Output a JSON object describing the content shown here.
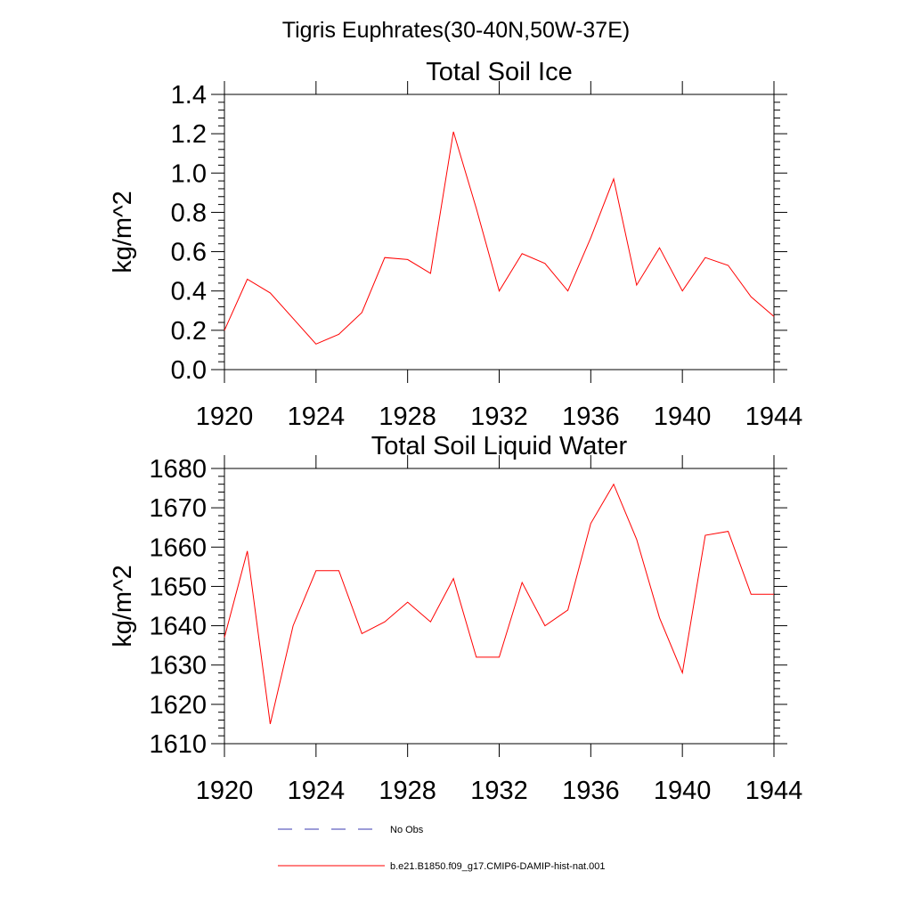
{
  "figure": {
    "title": "Tigris Euphrates(30-40N,50W-37E)"
  },
  "colors": {
    "series_model": "#ff0000",
    "series_obs": "#3a3ab0",
    "axis": "#000000"
  },
  "legend": {
    "placement": "bottom-center",
    "items": [
      {
        "label": "No Obs",
        "style": "dashed",
        "color": "#3a3ab0"
      },
      {
        "label": "b.e21.B1850.f09_g17.CMIP6-DAMIP-hist-nat.001",
        "style": "solid",
        "color": "#ff0000"
      }
    ]
  },
  "chart_data": [
    {
      "type": "line",
      "title": "Total Soil Ice",
      "xlabel": "",
      "ylabel": "kg/m^2",
      "xlim": [
        1920,
        1944
      ],
      "ylim": [
        0,
        1.4
      ],
      "xticks": [
        1920,
        1924,
        1928,
        1932,
        1936,
        1940,
        1944
      ],
      "yticks": [
        0.0,
        0.2,
        0.4,
        0.6,
        0.8,
        1.0,
        1.2,
        1.4
      ],
      "ytick_labels": [
        "0.0",
        "0.2",
        "0.4",
        "0.6",
        "0.8",
        "1.0",
        "1.2",
        "1.4"
      ],
      "grid": false,
      "x": [
        1920,
        1921,
        1922,
        1923,
        1924,
        1925,
        1926,
        1927,
        1928,
        1929,
        1930,
        1931,
        1932,
        1933,
        1934,
        1935,
        1936,
        1937,
        1938,
        1939,
        1940,
        1941,
        1942,
        1943,
        1944
      ],
      "series": [
        {
          "name": "b.e21.B1850.f09_g17.CMIP6-DAMIP-hist-nat.001",
          "color": "#ff0000",
          "values": [
            0.2,
            0.46,
            0.39,
            0.26,
            0.13,
            0.18,
            0.29,
            0.57,
            0.56,
            0.49,
            1.21,
            0.82,
            0.4,
            0.59,
            0.54,
            0.4,
            0.67,
            0.97,
            0.43,
            0.62,
            0.4,
            0.57,
            0.53,
            0.37,
            0.27
          ]
        }
      ]
    },
    {
      "type": "line",
      "title": "Total Soil Liquid Water",
      "xlabel": "",
      "ylabel": "kg/m^2",
      "xlim": [
        1920,
        1944
      ],
      "ylim": [
        1610,
        1680
      ],
      "xticks": [
        1920,
        1924,
        1928,
        1932,
        1936,
        1940,
        1944
      ],
      "yticks": [
        1610,
        1620,
        1630,
        1640,
        1650,
        1660,
        1670,
        1680
      ],
      "ytick_labels": [
        "1610",
        "1620",
        "1630",
        "1640",
        "1650",
        "1660",
        "1670",
        "1680"
      ],
      "grid": false,
      "x": [
        1920,
        1921,
        1922,
        1923,
        1924,
        1925,
        1926,
        1927,
        1928,
        1929,
        1930,
        1931,
        1932,
        1933,
        1934,
        1935,
        1936,
        1937,
        1938,
        1939,
        1940,
        1941,
        1942,
        1943,
        1944
      ],
      "series": [
        {
          "name": "b.e21.B1850.f09_g17.CMIP6-DAMIP-hist-nat.001",
          "color": "#ff0000",
          "values": [
            1637,
            1659,
            1615,
            1640,
            1654,
            1654,
            1638,
            1641,
            1646,
            1641,
            1652,
            1632,
            1632,
            1651,
            1640,
            1644,
            1666,
            1676,
            1662,
            1642,
            1628,
            1663,
            1664,
            1648,
            1648
          ]
        }
      ]
    }
  ]
}
